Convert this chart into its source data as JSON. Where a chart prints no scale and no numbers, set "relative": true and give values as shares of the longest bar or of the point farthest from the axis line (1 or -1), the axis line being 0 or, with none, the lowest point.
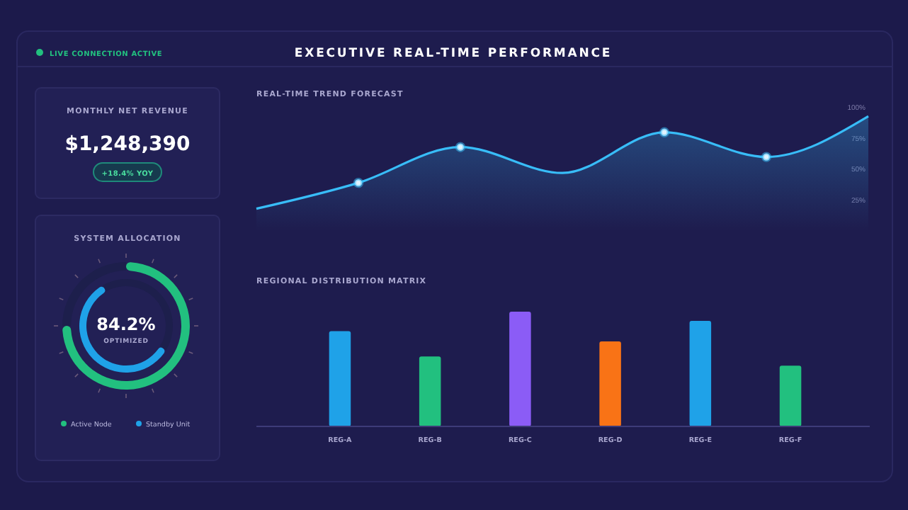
{
  "chart_data": [
    {
      "type": "other",
      "title": "EXECUTIVE REAL-TIME PERFORMANCE",
      "annotations": [
        "LIVE CONNECTION ACTIVE"
      ]
    },
    {
      "type": "other",
      "title": "MONTHLY NET REVENUE",
      "annotations": [
        "$1,248,390",
        "+18.4% YOY"
      ]
    },
    {
      "type": "donut",
      "title": "SYSTEM ALLOCATION",
      "annotations": [
        "84.2%",
        "OPTIMIZED"
      ],
      "legend": "bottom",
      "categories": [
        null,
        null
      ],
      "series": [
        {
          "name": "Active Node",
          "values": [
            75,
            25
          ],
          "colors": [
            "#22c07f",
            "#1d1f4c"
          ]
        },
        {
          "name": "Standby Unit",
          "values": [
            58,
            42
          ],
          "colors": [
            "#1fa2e8",
            "#1d1f4c"
          ]
        }
      ]
    },
    {
      "type": "line",
      "title": "REAL-TIME TREND FORECAST",
      "categories": [
        null,
        null,
        null,
        null,
        null,
        null,
        null
      ],
      "ylim": [
        0,
        100
      ],
      "yticks": [
        {
          "value": 25,
          "label": "25%"
        },
        {
          "value": 50,
          "label": "50%"
        },
        {
          "value": 75,
          "label": "75%"
        },
        {
          "value": 100,
          "label": "100%"
        }
      ],
      "tick_labels": "y",
      "series": [
        {
          "type": "area",
          "color": "#38bdf8",
          "values": [
            18,
            39,
            68,
            47,
            80,
            60,
            93
          ]
        },
        {
          "type": "scatter",
          "color": "#e0f2fe",
          "marker": "circle",
          "values": [
            null,
            39,
            68,
            null,
            80,
            60,
            null
          ]
        }
      ]
    },
    {
      "type": "bar",
      "title": "REGIONAL DISTRIBUTION MATRIX",
      "categories": [
        "REG-A",
        "REG-B",
        "REG-C",
        "REG-D",
        "REG-E",
        "REG-F"
      ],
      "values": [
        0.83,
        0.61,
        1,
        0.74,
        0.92,
        0.53
      ],
      "colors": [
        "#1fa2e8",
        "#22c07f",
        "#8b5cf6",
        "#f97316",
        "#1fa2e8",
        "#22c07f"
      ],
      "relative": true
    }
  ]
}
